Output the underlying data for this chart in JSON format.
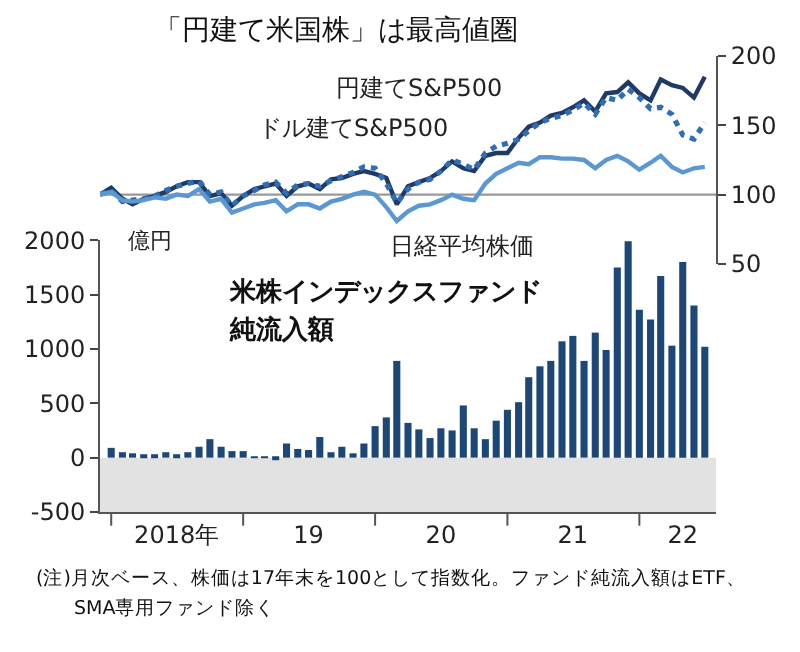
{
  "chart_data": [
    {
      "type": "line",
      "title": "「円建て米国株」は最高値圏",
      "x": [
        "2017-12",
        "2018-01",
        "2018-02",
        "2018-03",
        "2018-04",
        "2018-05",
        "2018-06",
        "2018-07",
        "2018-08",
        "2018-09",
        "2018-10",
        "2018-11",
        "2018-12",
        "2019-01",
        "2019-02",
        "2019-03",
        "2019-04",
        "2019-05",
        "2019-06",
        "2019-07",
        "2019-08",
        "2019-09",
        "2019-10",
        "2019-11",
        "2019-12",
        "2020-01",
        "2020-02",
        "2020-03",
        "2020-04",
        "2020-05",
        "2020-06",
        "2020-07",
        "2020-08",
        "2020-09",
        "2020-10",
        "2020-11",
        "2020-12",
        "2021-01",
        "2021-02",
        "2021-03",
        "2021-04",
        "2021-05",
        "2021-06",
        "2021-07",
        "2021-08",
        "2021-09",
        "2021-10",
        "2021-11",
        "2021-12",
        "2022-01",
        "2022-02",
        "2022-03",
        "2022-04",
        "2022-05",
        "2022-06",
        "2022-07"
      ],
      "series": [
        {
          "name": "円建てS&P500",
          "color": "#1f3a66",
          "line_style": "solid",
          "values": [
            100,
            105,
            97,
            93,
            97,
            99,
            102,
            106,
            109,
            109,
            99,
            101,
            92,
            99,
            104,
            106,
            108,
            99,
            106,
            108,
            104,
            111,
            112,
            115,
            117,
            115,
            112,
            93,
            106,
            109,
            112,
            117,
            124,
            119,
            117,
            128,
            130,
            130,
            141,
            149,
            152,
            157,
            159,
            163,
            168,
            160,
            173,
            174,
            181,
            173,
            168,
            183,
            179,
            177,
            170,
            185
          ]
        },
        {
          "name": "ドル建てS&P500",
          "color": "#2f6db5",
          "line_style": "dotted",
          "values": [
            100,
            103,
            95,
            96,
            97,
            99,
            103,
            106,
            108,
            110,
            100,
            102,
            92,
            99,
            103,
            107,
            109,
            101,
            107,
            108,
            106,
            110,
            113,
            116,
            120,
            119,
            108,
            94,
            104,
            109,
            111,
            117,
            125,
            122,
            118,
            130,
            135,
            137,
            140,
            146,
            152,
            155,
            157,
            161,
            166,
            158,
            170,
            168,
            176,
            170,
            162,
            163,
            158,
            143,
            140,
            152
          ]
        },
        {
          "name": "日経平均株価",
          "color": "#5b97d1",
          "line_style": "solid",
          "values": [
            100,
            102,
            96,
            95,
            96,
            98,
            97,
            100,
            99,
            104,
            95,
            97,
            87,
            90,
            93,
            94,
            96,
            88,
            93,
            93,
            90,
            95,
            97,
            100,
            102,
            100,
            91,
            81,
            88,
            92,
            93,
            96,
            100,
            97,
            96,
            108,
            115,
            119,
            123,
            122,
            127,
            127,
            126,
            126,
            125,
            119,
            125,
            128,
            124,
            118,
            123,
            128,
            120,
            116,
            119,
            120
          ]
        }
      ],
      "xlim": [
        "2017-12",
        "2022-08"
      ],
      "ylim": [
        50,
        200
      ],
      "yticks": [
        50,
        100,
        150,
        200
      ],
      "ref_lines": [
        {
          "axis": "y",
          "value": 100,
          "color": "#999999"
        }
      ],
      "tick_labels": "y",
      "grid": false
    },
    {
      "type": "bar",
      "ylabel": "億円",
      "annotations": [
        "米株インデックスファンド",
        "純流入額",
        "(注)月次ベース、株価は17年末を100として指数化。ファンド純流入額はETF、",
        "SMA専用ファンド除く"
      ],
      "x": [
        "2018-01",
        "2018-02",
        "2018-03",
        "2018-04",
        "2018-05",
        "2018-06",
        "2018-07",
        "2018-08",
        "2018-09",
        "2018-10",
        "2018-11",
        "2018-12",
        "2019-01",
        "2019-02",
        "2019-03",
        "2019-04",
        "2019-05",
        "2019-06",
        "2019-07",
        "2019-08",
        "2019-09",
        "2019-10",
        "2019-11",
        "2019-12",
        "2020-01",
        "2020-02",
        "2020-03",
        "2020-04",
        "2020-05",
        "2020-06",
        "2020-07",
        "2020-08",
        "2020-09",
        "2020-10",
        "2020-11",
        "2020-12",
        "2021-01",
        "2021-02",
        "2021-03",
        "2021-04",
        "2021-05",
        "2021-06",
        "2021-07",
        "2021-08",
        "2021-09",
        "2021-10",
        "2021-11",
        "2021-12",
        "2022-01",
        "2022-02",
        "2022-03",
        "2022-04",
        "2022-05",
        "2022-06",
        "2022-07"
      ],
      "series": [
        {
          "color": "#1d4777",
          "values": [
            90,
            50,
            40,
            30,
            30,
            50,
            30,
            50,
            100,
            170,
            100,
            60,
            60,
            10,
            10,
            -20,
            130,
            80,
            70,
            190,
            50,
            100,
            40,
            130,
            290,
            370,
            890,
            320,
            260,
            180,
            270,
            250,
            480,
            270,
            170,
            340,
            440,
            510,
            740,
            840,
            890,
            1070,
            1120,
            890,
            1150,
            990,
            1750,
            1990,
            1360,
            1270,
            1670,
            1030,
            1800,
            1400,
            1020
          ]
        }
      ],
      "xlim": [
        "2017-12",
        "2022-08"
      ],
      "xticks": [
        {
          "value": "2018-01",
          "label": null
        },
        {
          "value": "2018-07",
          "label": "2018年"
        },
        {
          "value": "2019-01",
          "label": null
        },
        {
          "value": "2019-07",
          "label": "19"
        },
        {
          "value": "2020-01",
          "label": null
        },
        {
          "value": "2020-07",
          "label": "20"
        },
        {
          "value": "2021-01",
          "label": null
        },
        {
          "value": "2021-07",
          "label": "21"
        },
        {
          "value": "2022-01",
          "label": null
        },
        {
          "value": "2022-05",
          "label": "22"
        }
      ],
      "ylim": [
        -500,
        2000
      ],
      "yticks": [
        -500,
        0,
        500,
        1000,
        1500,
        2000
      ],
      "bands": [
        {
          "axis": "y",
          "from": -500,
          "to": 0,
          "color": "#e2e2e2"
        }
      ],
      "grid": false
    }
  ]
}
